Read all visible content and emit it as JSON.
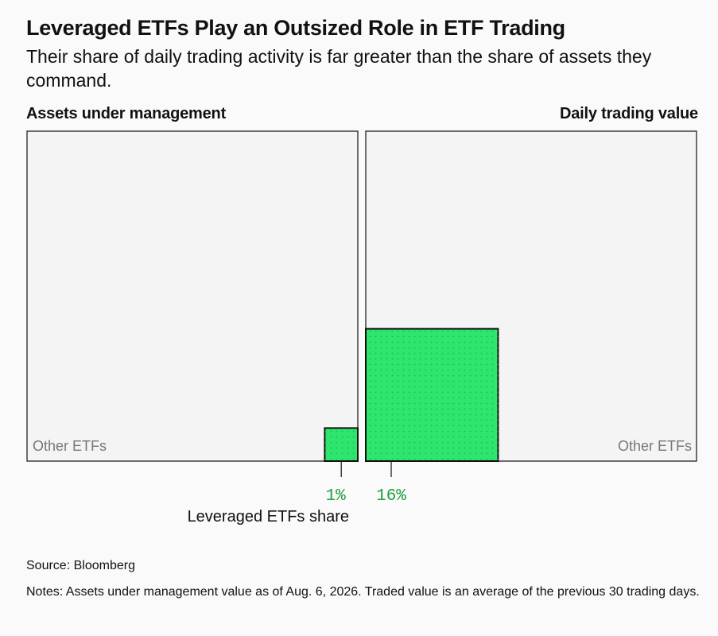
{
  "header": {
    "title": "Leveraged ETFs Play an Outsized Role in ETF Trading",
    "subtitle": "Their share of daily trading activity is far greater than the share of assets they command."
  },
  "panels": {
    "left_label": "Assets under management",
    "right_label": "Daily trading value"
  },
  "chart_data": [
    {
      "type": "treemap-square",
      "title": "Assets under management",
      "total_label": "Other ETFs",
      "highlight_label": "Leveraged ETFs share",
      "highlight_value": 1,
      "value_label": "1%",
      "unit": "%"
    },
    {
      "type": "treemap-square",
      "title": "Daily trading value",
      "total_label": "Other ETFs",
      "highlight_label": "Leveraged ETFs share",
      "highlight_value": 16,
      "value_label": "16%",
      "unit": "%"
    }
  ],
  "annotation": {
    "share_label": "Leveraged ETFs share"
  },
  "colors": {
    "highlight": "#2ee56d",
    "highlight_dot": "#22b855",
    "panel_fill": "#f4f4f5",
    "value_text": "#1f9e3e"
  },
  "footer": {
    "source": "Source: Bloomberg",
    "notes": "Notes: Assets under management value as of Aug. 6, 2026. Traded value is an average of the previous 30 trading days."
  }
}
